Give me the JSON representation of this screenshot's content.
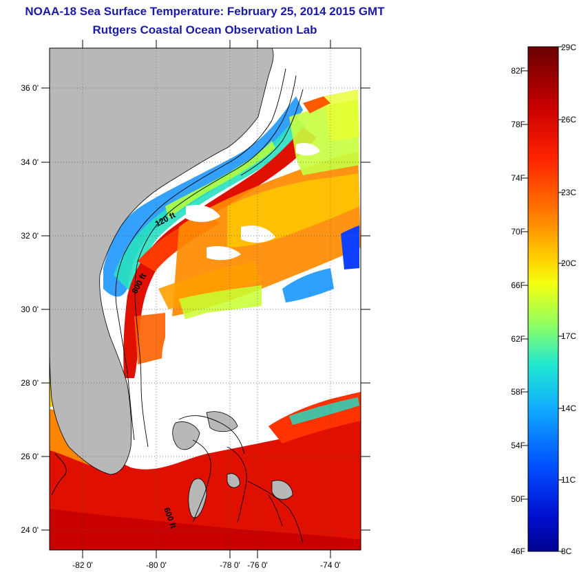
{
  "title": "NOAA-18 Sea Surface Temperature:  February 25, 2014 2015 GMT",
  "subtitle": "Rutgers Coastal Ocean Observation Lab",
  "map": {
    "lat_labels": [
      "36 0'",
      "34 0'",
      "32 0'",
      "30 0'",
      "28 0'",
      "26 0'",
      "24 0'"
    ],
    "lon_labels": [
      "-82 0'",
      "-80 0'",
      "-78 0'",
      "-76 0'",
      "-74 0'"
    ],
    "isobaths": [
      "120 ft",
      "600 ft",
      "600 ft"
    ]
  },
  "colorbar": {
    "fahrenheit": [
      "82F",
      "78F",
      "74F",
      "70F",
      "66F",
      "62F",
      "58F",
      "54F",
      "50F",
      "46F"
    ],
    "celsius": [
      "29C",
      "26C",
      "23C",
      "20C",
      "17C",
      "14C",
      "11C",
      "8C"
    ],
    "colors": [
      "#7a0000",
      "#c40000",
      "#ff2000",
      "#ff7800",
      "#ffcc00",
      "#f0ff10",
      "#90ff60",
      "#20e8d0",
      "#10a0ff",
      "#0040ff",
      "#0000a0"
    ]
  }
}
